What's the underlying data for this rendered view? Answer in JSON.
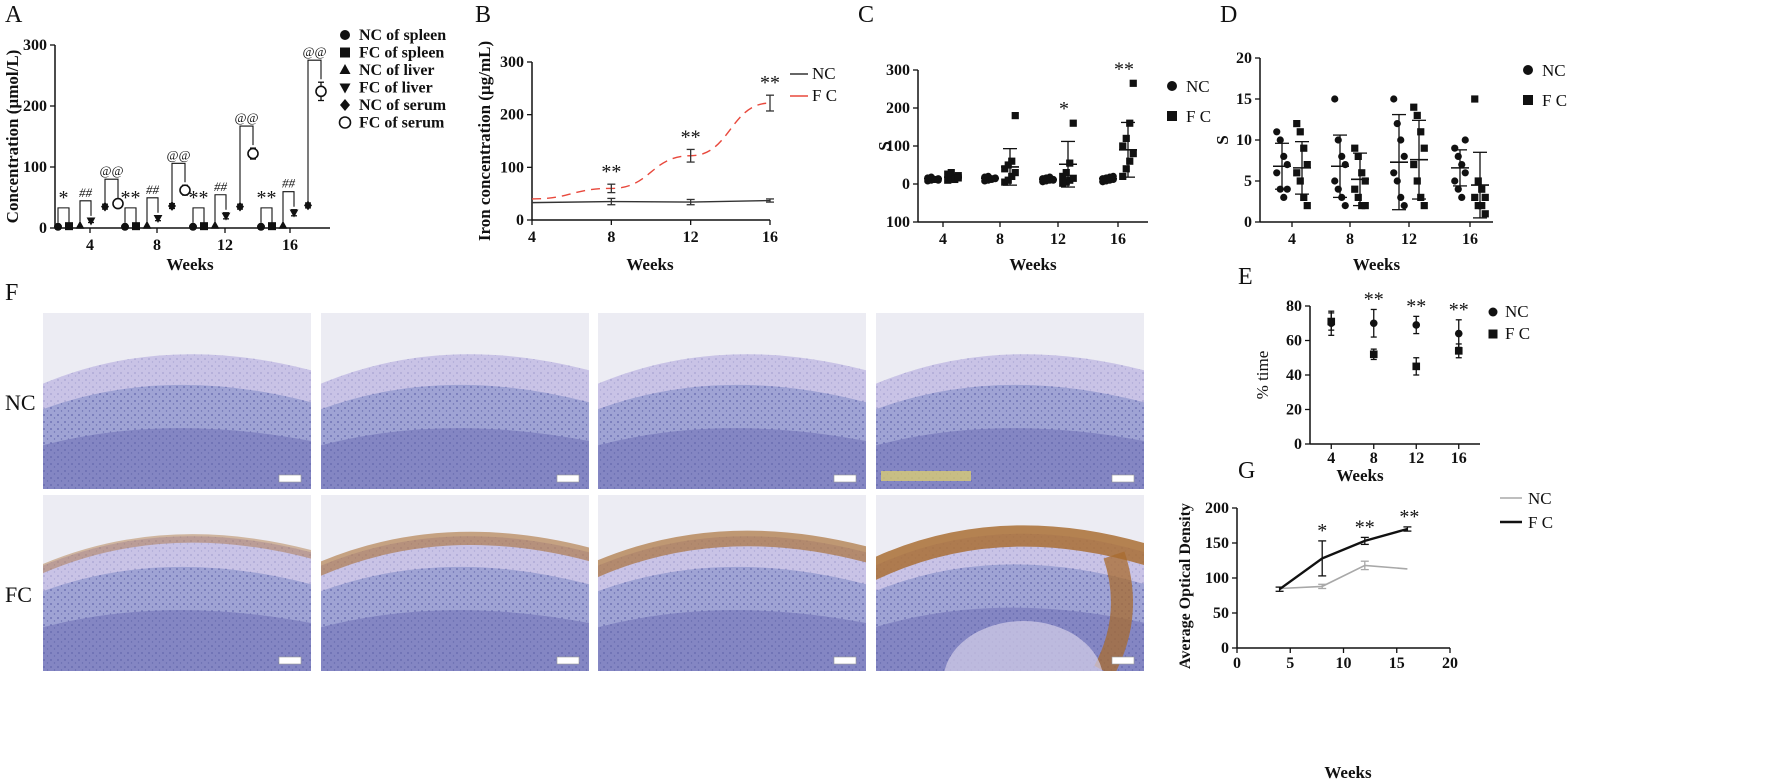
{
  "panel_letters": {
    "A": "A",
    "B": "B",
    "C": "C",
    "D": "D",
    "E": "E",
    "F": "F",
    "G": "G"
  },
  "histology": {
    "row_labels": [
      "NC",
      "FC"
    ],
    "colors": {
      "tissue": "#9fa3d4",
      "dense": "#6d6fb4",
      "surface": "#c9c3e6",
      "background": "#ececf3",
      "brown": "#a86b2e"
    },
    "brown_level": [
      0.15,
      0.45,
      0.6,
      0.95
    ]
  },
  "chart_data": [
    {
      "id": "A",
      "type": "scatter",
      "xlabel": "Weeks",
      "ylabel": "Concentration (µmol/L)",
      "ylim": [
        0,
        300
      ],
      "yticks": [
        0,
        100,
        200,
        300
      ],
      "categories": [
        "4",
        "8",
        "12",
        "16"
      ],
      "series": [
        {
          "name": "NC of spleen",
          "marker": "circle",
          "values": [
            2,
            2,
            2,
            2
          ],
          "errors": [
            0.5,
            0.5,
            0.5,
            0.5
          ]
        },
        {
          "name": "FC of spleen",
          "marker": "square",
          "values": [
            3,
            3,
            3,
            3
          ],
          "errors": [
            0.5,
            0.5,
            0.5,
            0.5
          ]
        },
        {
          "name": "NC of liver",
          "marker": "triangle-up",
          "values": [
            4,
            4,
            4,
            4
          ],
          "errors": [
            1,
            1,
            1,
            1
          ]
        },
        {
          "name": "FC of liver",
          "marker": "triangle-down",
          "values": [
            12,
            16,
            20,
            25
          ],
          "errors": [
            3,
            4,
            5,
            5
          ]
        },
        {
          "name": "NC of serum",
          "marker": "diamond",
          "values": [
            35,
            36,
            35,
            37
          ],
          "errors": [
            4,
            4,
            4,
            4
          ]
        },
        {
          "name": "FC of serum",
          "marker": "open-circle",
          "values": [
            40,
            62,
            122,
            224
          ],
          "errors": [
            4,
            8,
            9,
            15
          ]
        }
      ],
      "annotations": [
        {
          "group": "4",
          "spleen": "*",
          "liver": "##",
          "serum": "@@"
        },
        {
          "group": "8",
          "spleen": "**",
          "liver": "##",
          "serum": "@@"
        },
        {
          "group": "12",
          "spleen": "**",
          "liver": "##",
          "serum": "@@"
        },
        {
          "group": "16",
          "spleen": "**",
          "liver": "##",
          "serum": "@@"
        }
      ]
    },
    {
      "id": "B",
      "type": "line",
      "xlabel": "Weeks",
      "ylabel": "Iron concentration (µg/mL)",
      "xlim": [
        4,
        16
      ],
      "xticks": [
        4,
        8,
        12,
        16
      ],
      "ylim": [
        0,
        300
      ],
      "yticks": [
        0,
        100,
        200,
        300
      ],
      "legend": "top-right",
      "series": [
        {
          "name": "NC",
          "color": "#333333",
          "x": [
            4,
            8,
            12,
            16
          ],
          "values": [
            33,
            35,
            34,
            37
          ],
          "errors": [
            3,
            6,
            5,
            3
          ]
        },
        {
          "name": "F C",
          "color": "#e8483c",
          "x": [
            4,
            8,
            12,
            16
          ],
          "values": [
            40,
            60,
            122,
            222
          ],
          "errors": [
            3,
            8,
            12,
            15
          ]
        }
      ],
      "annotations": [
        {
          "x": 8,
          "text": "**"
        },
        {
          "x": 12,
          "text": "**"
        },
        {
          "x": 16,
          "text": "**"
        }
      ]
    },
    {
      "id": "C",
      "type": "scatter",
      "xlabel": "Weeks",
      "ylabel": "S",
      "ylim": [
        -100,
        300
      ],
      "yticks": [
        -100,
        0,
        100,
        200,
        300
      ],
      "ytick_labels": [
        "100",
        "0",
        "100",
        "200",
        "300"
      ],
      "categories": [
        "4",
        "8",
        "12",
        "16"
      ],
      "legend": "top-right",
      "series": [
        {
          "name": "NC",
          "marker": "circle",
          "mean": [
            14,
            15,
            12,
            14
          ],
          "sd": [
            4,
            5,
            5,
            5
          ],
          "points": [
            [
              8,
              10,
              12,
              14,
              16,
              18,
              12,
              10
            ],
            [
              8,
              10,
              14,
              16,
              18,
              20,
              12,
              14
            ],
            [
              6,
              8,
              10,
              12,
              14,
              16,
              18,
              10
            ],
            [
              6,
              8,
              10,
              12,
              14,
              16,
              18,
              20
            ]
          ]
        },
        {
          "name": "F C",
          "marker": "square",
          "mean": [
            18,
            45,
            52,
            90
          ],
          "sd": [
            6,
            48,
            60,
            72
          ],
          "points": [
            [
              10,
              14,
              18,
              22,
              26,
              30,
              12,
              16
            ],
            [
              5,
              10,
              20,
              30,
              40,
              50,
              60,
              180
            ],
            [
              2,
              5,
              10,
              15,
              20,
              30,
              55,
              160
            ],
            [
              20,
              40,
              60,
              80,
              100,
              120,
              160,
              265
            ]
          ]
        }
      ],
      "annotations": [
        {
          "category": "12",
          "text": "*"
        },
        {
          "category": "16",
          "text": "**"
        }
      ]
    },
    {
      "id": "D",
      "type": "scatter",
      "xlabel": "Weeks",
      "ylabel": "S",
      "ylim": [
        0,
        20
      ],
      "yticks": [
        0,
        5,
        10,
        15,
        20
      ],
      "categories": [
        "4",
        "8",
        "12",
        "16"
      ],
      "legend": "top-right",
      "series": [
        {
          "name": "NC",
          "marker": "circle",
          "mean": [
            6.8,
            6.8,
            7.3,
            6.6
          ],
          "sd": [
            2.8,
            3.8,
            5.8,
            2.2
          ],
          "points": [
            [
              11,
              10,
              8,
              7,
              6,
              4,
              3,
              4
            ],
            [
              15,
              10,
              8,
              7,
              5,
              4,
              3,
              2
            ],
            [
              15,
              12,
              10,
              8,
              6,
              5,
              3,
              2
            ],
            [
              9,
              8,
              7,
              6,
              5,
              4,
              3,
              10
            ]
          ]
        },
        {
          "name": "F C",
          "marker": "square",
          "mean": [
            6.6,
            5.2,
            7.6,
            4.5
          ],
          "sd": [
            3.2,
            3.2,
            4.8,
            4.0
          ],
          "points": [
            [
              12,
              11,
              9,
              7,
              6,
              5,
              3,
              2
            ],
            [
              9,
              8,
              6,
              5,
              4,
              3,
              2,
              2
            ],
            [
              14,
              13,
              11,
              9,
              7,
              5,
              3,
              2
            ],
            [
              15,
              5,
              4,
              3,
              3,
              2,
              2,
              1
            ]
          ]
        }
      ]
    },
    {
      "id": "E",
      "type": "scatter",
      "xlabel": "Weeks",
      "ylabel": "% time",
      "xlim": [
        2,
        18
      ],
      "ylim": [
        0,
        80
      ],
      "yticks": [
        0,
        20,
        40,
        60,
        80
      ],
      "categories": [
        "4",
        "8",
        "12",
        "16"
      ],
      "legend": "top-right",
      "series": [
        {
          "name": "NC",
          "marker": "circle",
          "x": [
            4,
            8,
            12,
            16
          ],
          "values": [
            70,
            70,
            69,
            64
          ],
          "errors": [
            7,
            8,
            5,
            8
          ]
        },
        {
          "name": "F C",
          "marker": "square",
          "x": [
            4,
            8,
            12,
            16
          ],
          "values": [
            71,
            52,
            45,
            54
          ],
          "errors": [
            5,
            3,
            5,
            4
          ]
        }
      ],
      "annotations": [
        {
          "x": 8,
          "text": "**"
        },
        {
          "x": 12,
          "text": "**"
        },
        {
          "x": 16,
          "text": "**"
        }
      ]
    },
    {
      "id": "G",
      "type": "line",
      "xlabel": "Weeks",
      "ylabel": "Average Optical Density",
      "xlim": [
        0,
        20
      ],
      "xticks": [
        0,
        5,
        10,
        15,
        20
      ],
      "ylim": [
        0,
        200
      ],
      "yticks": [
        0,
        50,
        100,
        150,
        200
      ],
      "legend": "top-right",
      "series": [
        {
          "name": "NC",
          "color": "#a8a8a8",
          "x": [
            4,
            8,
            12,
            16
          ],
          "values": [
            85,
            88,
            118,
            113
          ],
          "errors": [
            2,
            3,
            6,
            2
          ]
        },
        {
          "name": "F C",
          "color": "#111111",
          "x": [
            4,
            8,
            12,
            16
          ],
          "values": [
            84,
            128,
            153,
            170
          ],
          "errors": [
            3,
            25,
            5,
            3
          ]
        }
      ],
      "annotations": [
        {
          "x": 8,
          "text": "*"
        },
        {
          "x": 12,
          "text": "**"
        },
        {
          "x": 16,
          "text": "**"
        }
      ]
    }
  ]
}
